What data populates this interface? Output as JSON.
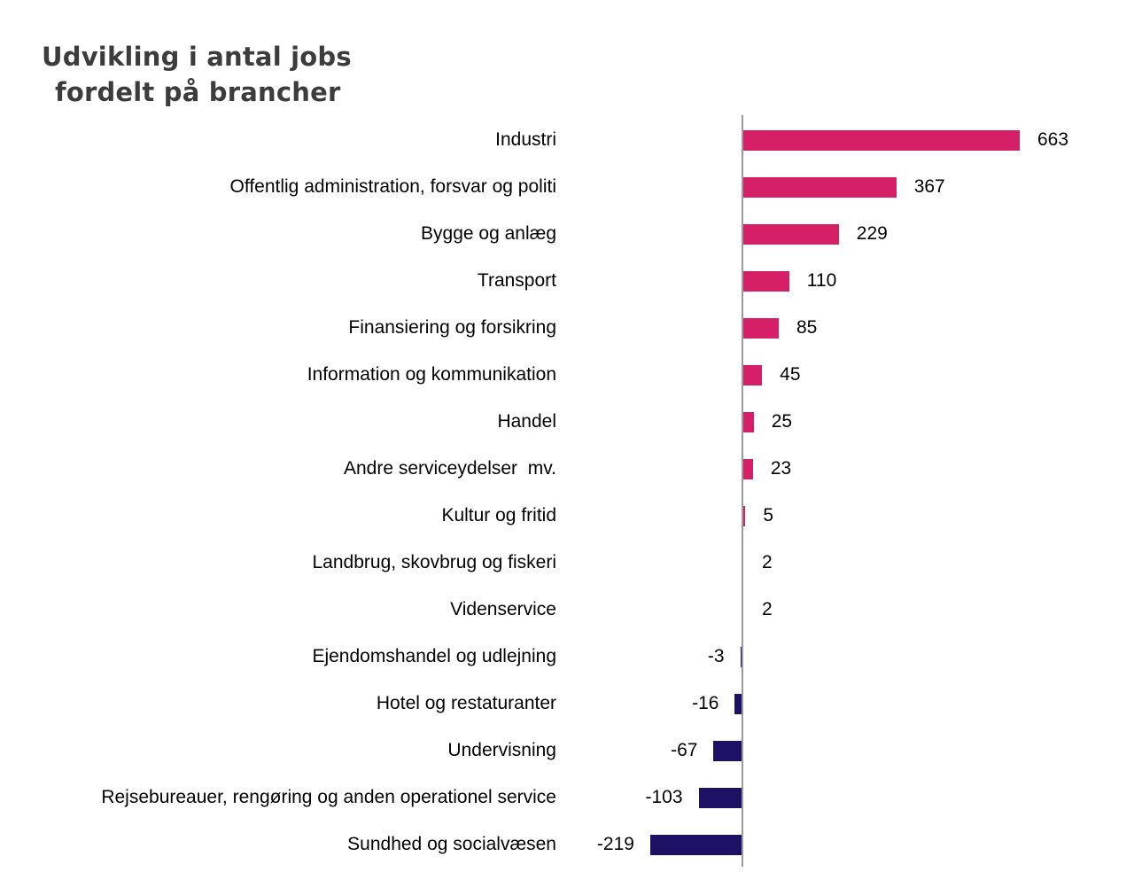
{
  "title": {
    "line1": "Udvikling i antal jobs",
    "line2": "fordelt på brancher"
  },
  "chart_data": {
    "type": "bar",
    "orientation": "horizontal",
    "title": "Udvikling i antal jobs fordelt på brancher",
    "categories": [
      "Industri",
      "Offentlig administration, forsvar og politi",
      "Bygge og anlæg",
      "Transport",
      "Finansiering og forsikring",
      "Information og kommunikation",
      "Handel",
      "Andre serviceydelser  mv.",
      "Kultur og fritid",
      "Landbrug, skovbrug og fiskeri",
      "Videnservice",
      "Ejendomshandel og udlejning",
      "Hotel og restaturanter",
      "Undervisning",
      "Rejsebureauer, rengøring og anden operationel service",
      "Sundhed og socialvæsen"
    ],
    "values": [
      663,
      367,
      229,
      110,
      85,
      45,
      25,
      23,
      5,
      2,
      2,
      -3,
      -16,
      -67,
      -103,
      -219
    ],
    "value_labels": [
      "663",
      "367",
      "229",
      "110",
      "85",
      "45",
      "25",
      "23",
      "5",
      "2",
      "2",
      "-3",
      "-16",
      "-67",
      "-103",
      "-219"
    ],
    "xlabel": "",
    "ylabel": "",
    "xlim": [
      -219,
      663
    ],
    "grid": false,
    "legend": "none",
    "positive_bar_color": "#d52067",
    "negative_bar_color": "#1d1166",
    "axis_line_color": "#9a9a9a",
    "label_color": "#000000",
    "title_color": "#3c3c3c"
  }
}
